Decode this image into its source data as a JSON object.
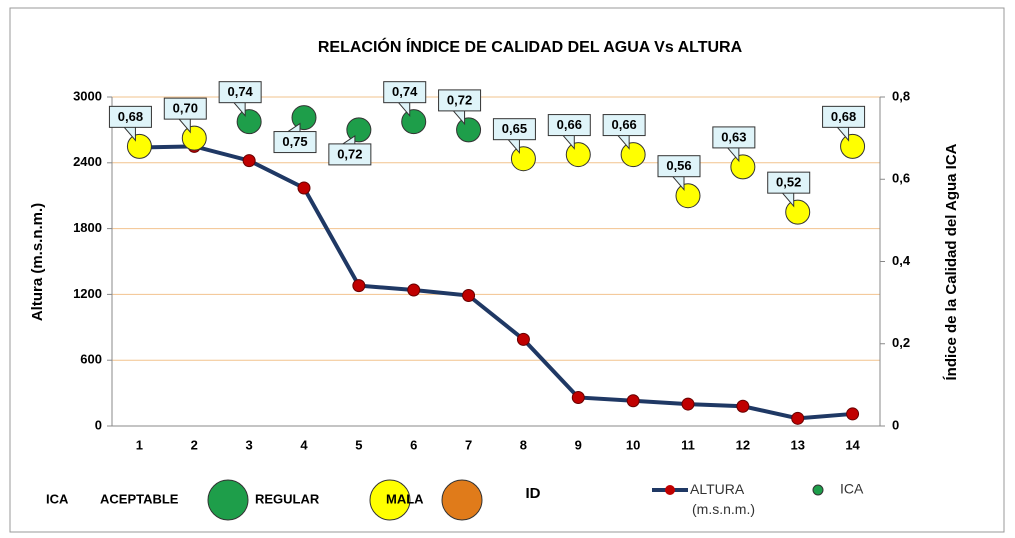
{
  "chart_data": {
    "type": "line_scatter",
    "title": "RELACIÓN ÍNDICE DE CALIDAD DEL AGUA Vs ALTURA",
    "y_label": "Altura (m.s.n.m.)",
    "y2_label": "Índice de la Calidad del Agua ICA",
    "x_label": "ID",
    "categories": [
      "1",
      "2",
      "3",
      "4",
      "5",
      "6",
      "7",
      "8",
      "9",
      "10",
      "11",
      "12",
      "13",
      "14"
    ],
    "ylim": [
      0,
      3000
    ],
    "yticks": [
      0,
      600,
      1200,
      1800,
      2400,
      3000
    ],
    "y2lim": [
      0,
      0.8
    ],
    "y2ticks": [
      0,
      {
        "value": 0.2,
        "label": "0,2"
      },
      {
        "value": 0.4,
        "label": "0,4"
      },
      {
        "value": 0.6,
        "label": "0,6"
      },
      {
        "value": 0.8,
        "label": "0,8"
      }
    ],
    "grid": true,
    "grid_color": "#f2c38e",
    "series": [
      {
        "name": "ALTURA (m.s.n.m.)",
        "color": "#1f3864",
        "marker_color": "#c00000",
        "values": [
          2540,
          2550,
          2420,
          2170,
          1280,
          1240,
          1190,
          790,
          260,
          230,
          200,
          180,
          70,
          110
        ]
      },
      {
        "name": "ICA",
        "color": "#1e9e4a",
        "axis": "y2",
        "values": [
          0.68,
          0.7,
          0.74,
          0.75,
          0.72,
          0.74,
          0.72,
          0.65,
          0.66,
          0.66,
          0.56,
          0.63,
          0.52,
          0.68
        ],
        "value_labels": [
          "0,68",
          "0,70",
          "0,74",
          "0,75",
          "0,72",
          "0,74",
          "0,72",
          "0,65",
          "0,66",
          "0,66",
          "0,56",
          "0,63",
          "0,52",
          "0,68"
        ],
        "colors": [
          "#ffff00",
          "#ffff00",
          "#1e9e4a",
          "#1e9e4a",
          "#1e9e4a",
          "#1e9e4a",
          "#1e9e4a",
          "#ffff00",
          "#ffff00",
          "#ffff00",
          "#ffff00",
          "#ffff00",
          "#ffff00",
          "#ffff00"
        ]
      }
    ],
    "ica_legend": {
      "title": "ICA",
      "items": [
        {
          "label": "ACEPTABLE",
          "color": "#1e9e4a"
        },
        {
          "label": "REGULAR",
          "color": "#ffff00"
        },
        {
          "label": "MALA",
          "color": "#e07b1a"
        }
      ]
    }
  }
}
